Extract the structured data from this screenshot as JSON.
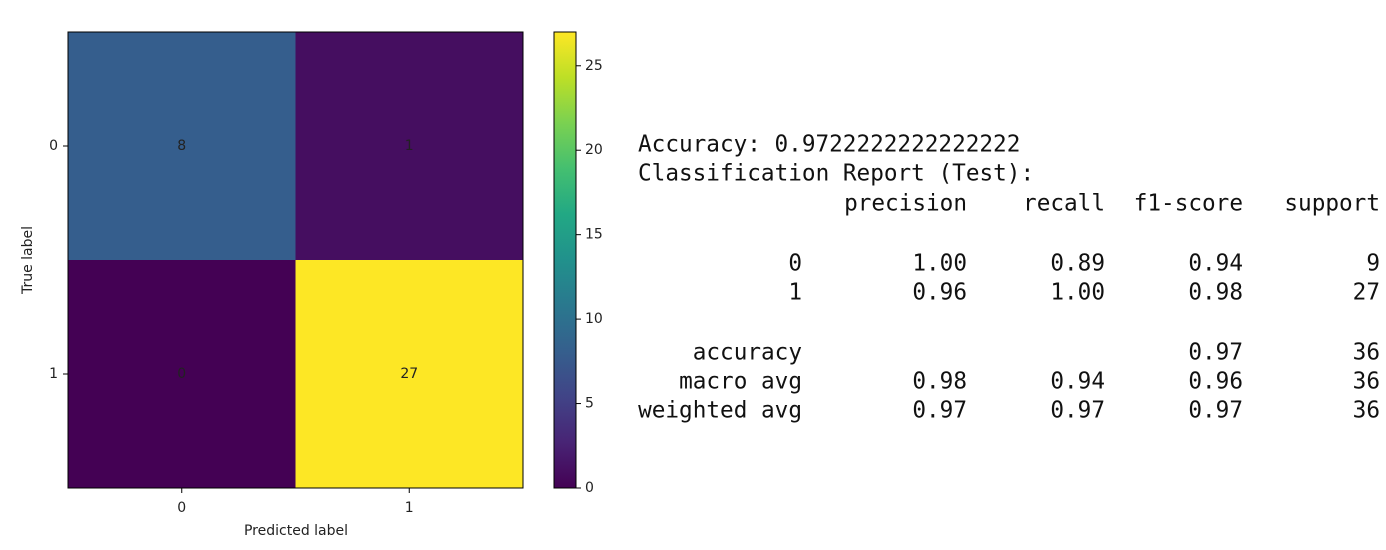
{
  "chart_data": {
    "type": "heatmap",
    "xlabel": "Predicted label",
    "ylabel": "True label",
    "x_categories": [
      "0",
      "1"
    ],
    "y_categories": [
      "0",
      "1"
    ],
    "values": [
      [
        8,
        1
      ],
      [
        0,
        27
      ]
    ],
    "colormap": "viridis",
    "clim": [
      0,
      27
    ],
    "cticks": [
      0,
      5,
      10,
      15,
      20,
      25
    ]
  },
  "report": {
    "accuracy_label": "Accuracy:",
    "accuracy": 0.9722222222222222,
    "title": "Classification Report (Test):",
    "columns": [
      "precision",
      "recall",
      "f1-score",
      "support"
    ],
    "class_rows": [
      [
        "0",
        "1.00",
        "0.89",
        "0.94",
        "9"
      ],
      [
        "1",
        "0.96",
        "1.00",
        "0.98",
        "27"
      ]
    ],
    "avg_rows": [
      [
        "accuracy",
        null,
        null,
        "0.97",
        "36"
      ],
      [
        "macro avg",
        "0.98",
        "0.94",
        "0.96",
        "36"
      ],
      [
        "weighted avg",
        "0.97",
        "0.97",
        "0.97",
        "36"
      ]
    ]
  }
}
